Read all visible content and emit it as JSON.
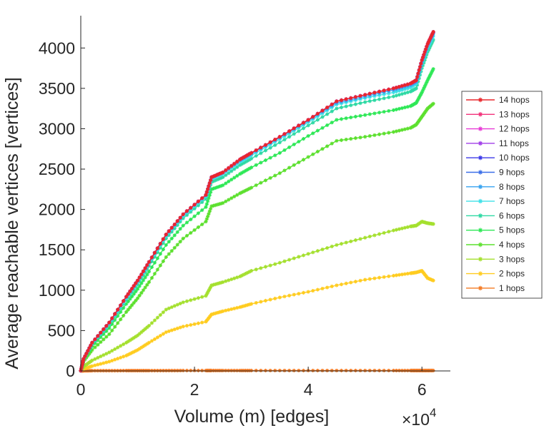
{
  "chart_data": {
    "type": "line",
    "title": "",
    "xlabel": "Volume (m) [edges]",
    "ylabel": "Average reachable vertices [vertices]",
    "x_scale_label": "×10",
    "x_scale_exponent": "4",
    "xlim": [
      0,
      65000
    ],
    "ylim": [
      0,
      4400
    ],
    "x_ticks": [
      0,
      20000,
      40000,
      60000
    ],
    "x_tick_labels": [
      "0",
      "2",
      "4",
      "6"
    ],
    "y_ticks": [
      0,
      500,
      1000,
      1500,
      2000,
      2500,
      3000,
      3500,
      4000
    ],
    "y_tick_labels": [
      "0",
      "500",
      "1000",
      "1500",
      "2000",
      "2500",
      "3000",
      "3500",
      "4000"
    ],
    "grid": false,
    "legend_position": "right",
    "marker": "asterisk",
    "x": [
      0,
      500,
      2000,
      5000,
      8000,
      10000,
      12000,
      15000,
      18000,
      22000,
      23000,
      25000,
      28000,
      30000,
      35000,
      40000,
      45000,
      50000,
      55000,
      58000,
      59000,
      60000,
      61000,
      62000
    ],
    "series": [
      {
        "name": "14 hops",
        "color": "#e8262b",
        "values": [
          4,
          150,
          350,
          600,
          920,
          1120,
          1350,
          1690,
          1940,
          2180,
          2400,
          2460,
          2620,
          2700,
          2900,
          3110,
          3340,
          3420,
          3500,
          3560,
          3600,
          3850,
          4050,
          4200
        ]
      },
      {
        "name": "13 hops",
        "color": "#f2317a",
        "values": [
          4,
          150,
          350,
          600,
          920,
          1120,
          1350,
          1690,
          1940,
          2180,
          2400,
          2460,
          2620,
          2700,
          2900,
          3110,
          3340,
          3420,
          3500,
          3560,
          3600,
          3850,
          4050,
          4200
        ]
      },
      {
        "name": "12 hops",
        "color": "#e83ad6",
        "values": [
          4,
          150,
          350,
          600,
          920,
          1120,
          1350,
          1690,
          1940,
          2180,
          2400,
          2460,
          2620,
          2700,
          2900,
          3110,
          3340,
          3420,
          3500,
          3560,
          3600,
          3850,
          4050,
          4200
        ]
      },
      {
        "name": "11 hops",
        "color": "#a03de8",
        "values": [
          4,
          150,
          350,
          600,
          920,
          1120,
          1350,
          1690,
          1940,
          2180,
          2400,
          2460,
          2620,
          2700,
          2900,
          3110,
          3340,
          3420,
          3500,
          3560,
          3600,
          3850,
          4050,
          4200
        ]
      },
      {
        "name": "10 hops",
        "color": "#3b38e8",
        "values": [
          4,
          150,
          350,
          600,
          920,
          1120,
          1350,
          1690,
          1940,
          2180,
          2400,
          2460,
          2620,
          2700,
          2900,
          3110,
          3340,
          3420,
          3500,
          3560,
          3600,
          3850,
          4050,
          4200
        ]
      },
      {
        "name": "9 hops",
        "color": "#3a6ee8",
        "values": [
          4,
          150,
          350,
          600,
          920,
          1120,
          1350,
          1690,
          1940,
          2180,
          2400,
          2460,
          2620,
          2700,
          2900,
          3110,
          3340,
          3420,
          3500,
          3560,
          3600,
          3850,
          4050,
          4190
        ]
      },
      {
        "name": "8 hops",
        "color": "#36a3f0",
        "values": [
          4,
          150,
          345,
          595,
          915,
          1115,
          1345,
          1685,
          1935,
          2175,
          2395,
          2455,
          2610,
          2690,
          2890,
          3100,
          3320,
          3400,
          3480,
          3540,
          3580,
          3830,
          4030,
          4180
        ]
      },
      {
        "name": "7 hops",
        "color": "#3ee0e8",
        "values": [
          4,
          148,
          340,
          585,
          900,
          1100,
          1330,
          1670,
          1920,
          2160,
          2380,
          2440,
          2590,
          2670,
          2870,
          3080,
          3300,
          3380,
          3450,
          3510,
          3560,
          3800,
          4000,
          4150
        ]
      },
      {
        "name": "6 hops",
        "color": "#2ed9a4",
        "values": [
          4,
          145,
          330,
          570,
          880,
          1075,
          1300,
          1640,
          1890,
          2130,
          2340,
          2400,
          2550,
          2630,
          2830,
          3040,
          3250,
          3330,
          3400,
          3460,
          3500,
          3750,
          3950,
          4100
        ]
      },
      {
        "name": "5 hops",
        "color": "#2ee856",
        "values": [
          4,
          135,
          305,
          530,
          830,
          1015,
          1230,
          1560,
          1800,
          2030,
          2250,
          2300,
          2440,
          2520,
          2700,
          2910,
          3110,
          3170,
          3230,
          3280,
          3320,
          3450,
          3600,
          3740
        ]
      },
      {
        "name": "4 hops",
        "color": "#5ce02e",
        "values": [
          4,
          120,
          260,
          455,
          730,
          900,
          1100,
          1410,
          1640,
          1850,
          2040,
          2080,
          2200,
          2270,
          2450,
          2650,
          2850,
          2900,
          2960,
          3010,
          3050,
          3150,
          3250,
          3310
        ]
      },
      {
        "name": "3 hops",
        "color": "#a4e02e",
        "values": [
          3,
          55,
          130,
          230,
          350,
          440,
          560,
          760,
          850,
          930,
          1060,
          1100,
          1170,
          1240,
          1340,
          1450,
          1560,
          1650,
          1740,
          1790,
          1800,
          1850,
          1830,
          1820
        ]
      },
      {
        "name": "2 hops",
        "color": "#ffcc1f",
        "values": [
          2,
          25,
          60,
          115,
          190,
          260,
          350,
          480,
          550,
          610,
          700,
          740,
          790,
          830,
          910,
          980,
          1060,
          1130,
          1180,
          1210,
          1220,
          1240,
          1150,
          1120
        ]
      },
      {
        "name": "1 hops",
        "color": "#f47a23",
        "values": [
          1,
          2,
          3,
          3,
          4,
          4,
          4,
          4,
          5,
          5,
          5,
          5,
          5,
          5,
          5,
          5,
          5,
          5,
          5,
          5,
          5,
          5,
          5,
          5
        ]
      }
    ]
  }
}
